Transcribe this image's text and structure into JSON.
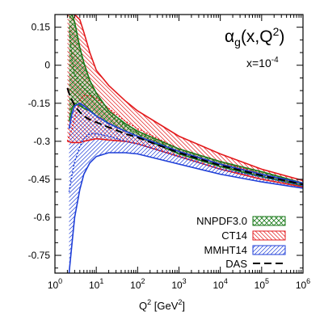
{
  "chart_data": {
    "type": "line",
    "title": "",
    "annotation_main": "α",
    "annotation_sub": "g",
    "annotation_rest": "(x,Q",
    "annotation_sup": "2",
    "annotation_close": ")",
    "annotation_x_base": "x=10",
    "annotation_x_exp": "-4",
    "xlabel_main": "Q",
    "xlabel_sup": "2",
    "xlabel_unit_open": " [GeV",
    "xlabel_unit_sup": "2",
    "xlabel_unit_close": "]",
    "ylabel": "",
    "x_scale": "log",
    "xlim": [
      1,
      1000000
    ],
    "ylim": [
      -0.82,
      0.2
    ],
    "grid": false,
    "legend_position": "bottom-right",
    "x_ticks": [
      {
        "value": 1,
        "base": "10",
        "exp": "0"
      },
      {
        "value": 10,
        "base": "10",
        "exp": "1"
      },
      {
        "value": 100,
        "base": "10",
        "exp": "2"
      },
      {
        "value": 1000,
        "base": "10",
        "exp": "3"
      },
      {
        "value": 10000,
        "base": "10",
        "exp": "4"
      },
      {
        "value": 100000,
        "base": "10",
        "exp": "5"
      },
      {
        "value": 1000000,
        "base": "10",
        "exp": "6"
      }
    ],
    "y_ticks": [
      {
        "value": 0.15,
        "label": "0.15"
      },
      {
        "value": 0,
        "label": "0"
      },
      {
        "value": -0.15,
        "label": "-0.15"
      },
      {
        "value": -0.3,
        "label": "-0.3"
      },
      {
        "value": -0.45,
        "label": "-0.45"
      },
      {
        "value": -0.6,
        "label": "-0.6"
      },
      {
        "value": -0.75,
        "label": "-0.75"
      }
    ],
    "series": [
      {
        "name": "NNPDF3.0",
        "style": "band-crosshatch",
        "color": "#1a7a1a",
        "x": [
          2.2,
          2.6,
          3,
          4,
          5,
          7,
          10,
          20,
          50,
          100,
          1000,
          10000,
          100000,
          1000000
        ],
        "upper": [
          0.2,
          0.2,
          0.17,
          0.07,
          0.01,
          -0.06,
          -0.11,
          -0.18,
          -0.23,
          -0.26,
          -0.33,
          -0.38,
          -0.42,
          -0.465
        ],
        "lower": [
          -0.22,
          -0.17,
          -0.15,
          -0.16,
          -0.17,
          -0.18,
          -0.2,
          -0.23,
          -0.26,
          -0.28,
          -0.35,
          -0.4,
          -0.44,
          -0.475
        ],
        "central": [
          0.15,
          0.02,
          -0.04,
          -0.07,
          -0.09,
          -0.11,
          -0.14,
          -0.19,
          -0.24,
          -0.27,
          -0.34,
          -0.39,
          -0.43,
          -0.47
        ]
      },
      {
        "name": "CT14",
        "style": "band-hatch",
        "color": "#e31a1c",
        "x": [
          2,
          2.6,
          3,
          4,
          5,
          7,
          10,
          20,
          50,
          100,
          1000,
          10000,
          100000,
          1000000
        ],
        "upper": [
          0.2,
          0.2,
          0.2,
          0.18,
          0.13,
          0.05,
          -0.02,
          -0.08,
          -0.14,
          -0.18,
          -0.28,
          -0.35,
          -0.41,
          -0.455
        ],
        "lower": [
          -0.3,
          -0.305,
          -0.305,
          -0.305,
          -0.3,
          -0.295,
          -0.29,
          -0.295,
          -0.3,
          -0.31,
          -0.36,
          -0.41,
          -0.45,
          -0.48
        ],
        "central": [
          -0.3,
          -0.25,
          -0.21,
          -0.14,
          -0.12,
          -0.12,
          -0.13,
          -0.17,
          -0.22,
          -0.25,
          -0.33,
          -0.38,
          -0.43,
          -0.47
        ]
      },
      {
        "name": "MMHT14",
        "style": "band-hatch",
        "color": "#1f3fd8",
        "x": [
          2.2,
          2.6,
          3,
          4,
          5,
          7,
          10,
          20,
          50,
          100,
          1000,
          10000,
          100000,
          1000000
        ],
        "upper": [
          -0.25,
          -0.19,
          -0.16,
          -0.15,
          -0.16,
          -0.18,
          -0.2,
          -0.23,
          -0.26,
          -0.28,
          -0.34,
          -0.39,
          -0.43,
          -0.465
        ],
        "lower": [
          -0.82,
          -0.7,
          -0.6,
          -0.49,
          -0.43,
          -0.385,
          -0.36,
          -0.345,
          -0.345,
          -0.35,
          -0.39,
          -0.43,
          -0.46,
          -0.485
        ],
        "central": [
          -0.5,
          -0.43,
          -0.38,
          -0.32,
          -0.29,
          -0.27,
          -0.27,
          -0.28,
          -0.3,
          -0.31,
          -0.36,
          -0.41,
          -0.44,
          -0.475
        ]
      },
      {
        "name": "DAS",
        "style": "dashed",
        "color": "#000000",
        "x": [
          2.0,
          2.3,
          3,
          4,
          5,
          7,
          10,
          20,
          50,
          100,
          1000,
          10000,
          100000,
          1000000
        ],
        "central": [
          -0.09,
          -0.12,
          -0.16,
          -0.185,
          -0.2,
          -0.215,
          -0.225,
          -0.245,
          -0.27,
          -0.285,
          -0.345,
          -0.395,
          -0.435,
          -0.47
        ]
      }
    ]
  }
}
